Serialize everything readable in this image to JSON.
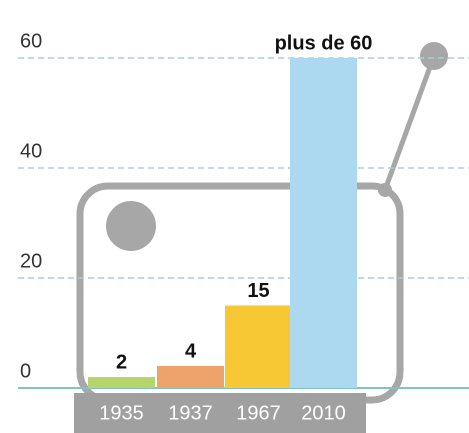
{
  "chart_data": {
    "type": "bar",
    "categories": [
      "1935",
      "1937",
      "1967",
      "2010"
    ],
    "values": [
      2,
      4,
      15,
      60
    ],
    "value_labels": [
      "2",
      "4",
      "15",
      "plus de 60"
    ],
    "colors": [
      "#b5d46a",
      "#eea36b",
      "#f7c833",
      "#acd9f0"
    ],
    "ylim": [
      0,
      60
    ],
    "yticks": [
      0,
      20,
      40,
      60
    ],
    "grid": true
  }
}
